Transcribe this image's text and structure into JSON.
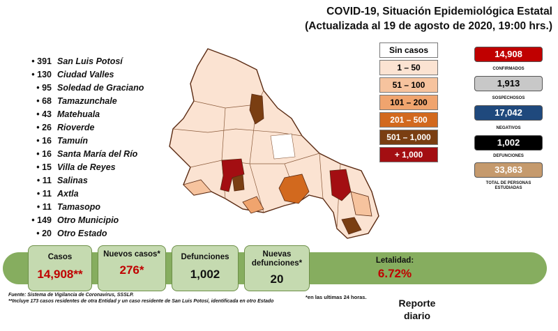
{
  "title": {
    "line1": "COVID-19, Situación Epidemiológica Estatal",
    "line2": "(Actualizada al 19 de agosto de 2020, 19:00 hrs.)"
  },
  "municipalities": [
    {
      "count": "391",
      "name": "San Luis Potosí"
    },
    {
      "count": "130",
      "name": "Ciudad Valles"
    },
    {
      "count": "95",
      "name": "Soledad de Graciano"
    },
    {
      "count": "68",
      "name": "Tamazunchale"
    },
    {
      "count": "43",
      "name": "Matehuala"
    },
    {
      "count": "26",
      "name": "Rioverde"
    },
    {
      "count": "16",
      "name": "Tamuín"
    },
    {
      "count": "16",
      "name": "Santa María del Río"
    },
    {
      "count": "15",
      "name": "Villa de Reyes"
    },
    {
      "count": "11",
      "name": "Salinas"
    },
    {
      "count": "11",
      "name": "Axtla"
    },
    {
      "count": "11",
      "name": "Tamasopo"
    },
    {
      "count": "149",
      "name": "Otro Municipio"
    },
    {
      "count": "20",
      "name": "Otro Estado"
    }
  ],
  "bullet": "•",
  "legend": [
    {
      "label": "Sin casos",
      "color": "#ffffff",
      "text_color": "#000000"
    },
    {
      "label": "1 – 50",
      "color": "#fbe3d2",
      "text_color": "#000000"
    },
    {
      "label": "51 – 100",
      "color": "#f6c39e",
      "text_color": "#000000"
    },
    {
      "label": "101 – 200",
      "color": "#f0a46e",
      "text_color": "#000000"
    },
    {
      "label": "201 – 500",
      "color": "#d2691e",
      "text_color": "#ffffff"
    },
    {
      "label": "501 – 1,000",
      "color": "#7a3e12",
      "text_color": "#ffffff"
    },
    {
      "label": "+ 1,000",
      "color": "#a30e12",
      "text_color": "#ffffff"
    }
  ],
  "stats": [
    {
      "value": "14,908",
      "label": "CONFIRMADOS",
      "color": "#c00000",
      "text_color": "#ffffff"
    },
    {
      "value": "1,913",
      "label": "SOSPECHOSOS",
      "color": "#c8c8c8",
      "text_color": "#000000"
    },
    {
      "value": "17,042",
      "label": "NEGATIVOS",
      "color": "#1f497d",
      "text_color": "#ffffff"
    },
    {
      "value": "1,002",
      "label": "DEFUNCIONES",
      "color": "#000000",
      "text_color": "#ffffff"
    },
    {
      "value": "33,863",
      "label": "TOTAL DE PERSONAS ESTUDIADAS",
      "color": "#c59a6d",
      "text_color": "#ffffff"
    }
  ],
  "summary": [
    {
      "label": "Casos",
      "value": "14,908**"
    },
    {
      "label": "Nuevos casos*",
      "value": "276*"
    },
    {
      "label": "Defunciones",
      "value": "1,002"
    },
    {
      "label": "Nuevas defunciones*",
      "value": "20"
    },
    {
      "label": "Letalidad:",
      "value": "6.72%"
    }
  ],
  "footer": {
    "source": "Fuente: Sistema de Vigilancia de Coronavirus, SSSLP.",
    "note": "**Incluye 173 casos residentes de otra Entidad y un caso residente de San Luis Potosí, identificada en otro Estado",
    "last24": "*en las ultimas 24 horas.",
    "report_line1": "Reporte",
    "report_line2": "diario"
  }
}
